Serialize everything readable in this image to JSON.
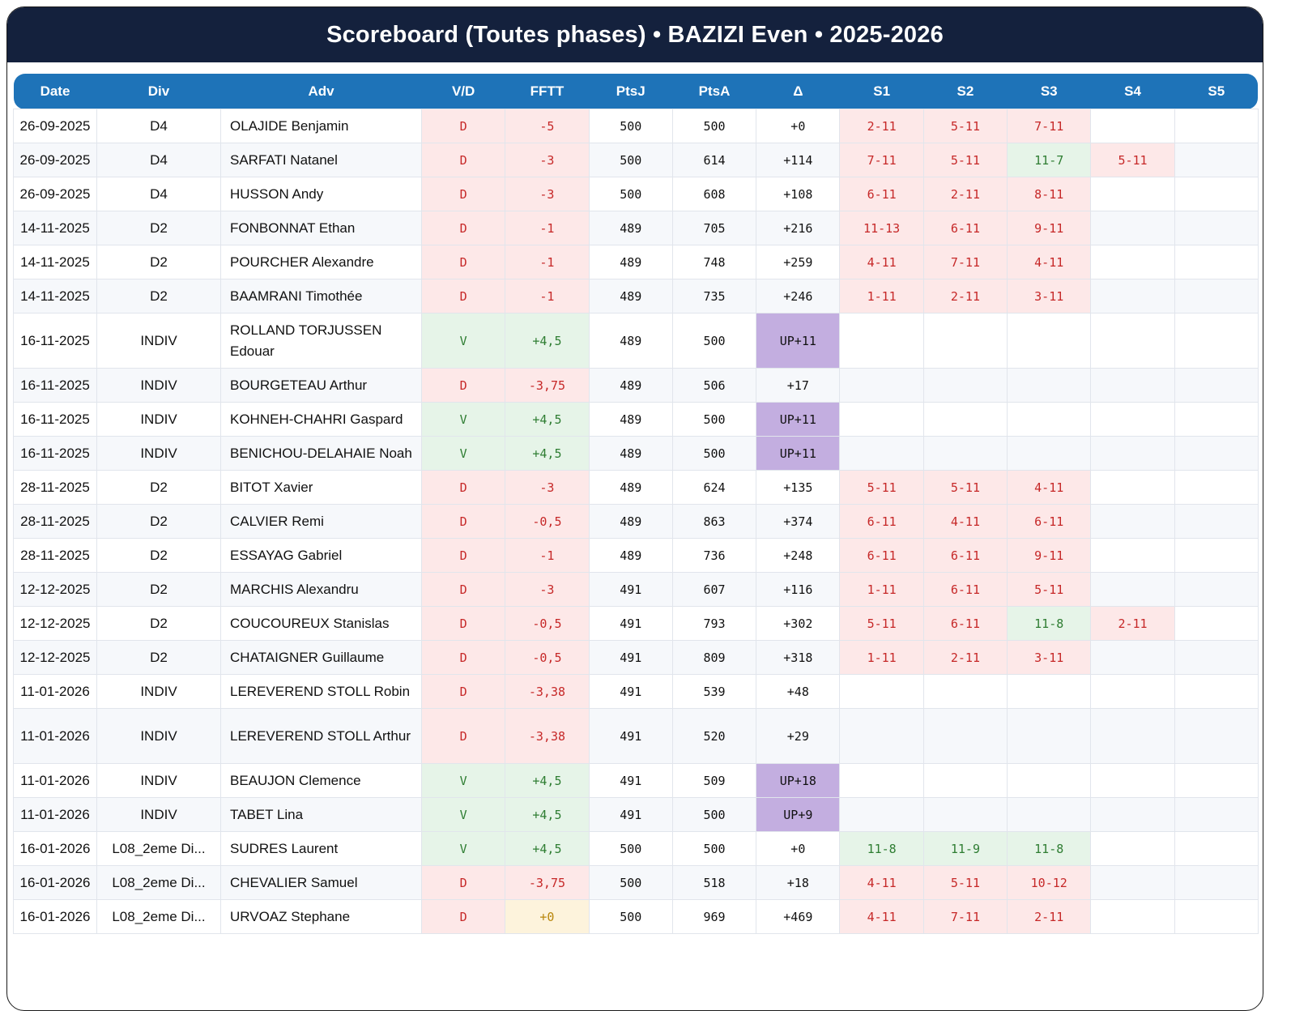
{
  "title": "Scoreboard (Toutes phases) • BAZIZI Even • 2025-2026",
  "columns": [
    "Date",
    "Div",
    "Adv",
    "V/D",
    "FFTT",
    "PtsJ",
    "PtsA",
    "Δ",
    "S1",
    "S2",
    "S3",
    "S4",
    "S5"
  ],
  "rows": [
    {
      "date": "26-09-2025",
      "div": "D4",
      "adv": "OLAJIDE Benjamin",
      "vd": "D",
      "fftt": "-5",
      "ptsj": "500",
      "ptsa": "500",
      "delta": "+0",
      "sets": [
        "2-11",
        "5-11",
        "7-11",
        "",
        ""
      ]
    },
    {
      "date": "26-09-2025",
      "div": "D4",
      "adv": "SARFATI Natanel",
      "vd": "D",
      "fftt": "-3",
      "ptsj": "500",
      "ptsa": "614",
      "delta": "+114",
      "sets": [
        "7-11",
        "5-11",
        "11-7",
        "5-11",
        ""
      ]
    },
    {
      "date": "26-09-2025",
      "div": "D4",
      "adv": "HUSSON Andy",
      "vd": "D",
      "fftt": "-3",
      "ptsj": "500",
      "ptsa": "608",
      "delta": "+108",
      "sets": [
        "6-11",
        "2-11",
        "8-11",
        "",
        ""
      ]
    },
    {
      "date": "14-11-2025",
      "div": "D2",
      "adv": "FONBONNAT Ethan",
      "vd": "D",
      "fftt": "-1",
      "ptsj": "489",
      "ptsa": "705",
      "delta": "+216",
      "sets": [
        "11-13",
        "6-11",
        "9-11",
        "",
        ""
      ]
    },
    {
      "date": "14-11-2025",
      "div": "D2",
      "adv": "POURCHER Alexandre",
      "vd": "D",
      "fftt": "-1",
      "ptsj": "489",
      "ptsa": "748",
      "delta": "+259",
      "sets": [
        "4-11",
        "7-11",
        "4-11",
        "",
        ""
      ]
    },
    {
      "date": "14-11-2025",
      "div": "D2",
      "adv": "BAAMRANI Timothée",
      "vd": "D",
      "fftt": "-1",
      "ptsj": "489",
      "ptsa": "735",
      "delta": "+246",
      "sets": [
        "1-11",
        "2-11",
        "3-11",
        "",
        ""
      ]
    },
    {
      "date": "16-11-2025",
      "div": "INDIV",
      "adv": "ROLLAND TORJUSSEN Edouar",
      "vd": "V",
      "fftt": "+4,5",
      "ptsj": "489",
      "ptsa": "500",
      "delta": "UP+11",
      "sets": [
        "",
        "",
        "",
        "",
        ""
      ]
    },
    {
      "date": "16-11-2025",
      "div": "INDIV",
      "adv": "BOURGETEAU Arthur",
      "vd": "D",
      "fftt": "-3,75",
      "ptsj": "489",
      "ptsa": "506",
      "delta": "+17",
      "sets": [
        "",
        "",
        "",
        "",
        ""
      ]
    },
    {
      "date": "16-11-2025",
      "div": "INDIV",
      "adv": "KOHNEH-CHAHRI Gaspard",
      "vd": "V",
      "fftt": "+4,5",
      "ptsj": "489",
      "ptsa": "500",
      "delta": "UP+11",
      "sets": [
        "",
        "",
        "",
        "",
        ""
      ]
    },
    {
      "date": "16-11-2025",
      "div": "INDIV",
      "adv": "BENICHOU-DELAHAIE Noah",
      "vd": "V",
      "fftt": "+4,5",
      "ptsj": "489",
      "ptsa": "500",
      "delta": "UP+11",
      "sets": [
        "",
        "",
        "",
        "",
        ""
      ]
    },
    {
      "date": "28-11-2025",
      "div": "D2",
      "adv": "BITOT Xavier",
      "vd": "D",
      "fftt": "-3",
      "ptsj": "489",
      "ptsa": "624",
      "delta": "+135",
      "sets": [
        "5-11",
        "5-11",
        "4-11",
        "",
        ""
      ]
    },
    {
      "date": "28-11-2025",
      "div": "D2",
      "adv": "CALVIER Remi",
      "vd": "D",
      "fftt": "-0,5",
      "ptsj": "489",
      "ptsa": "863",
      "delta": "+374",
      "sets": [
        "6-11",
        "4-11",
        "6-11",
        "",
        ""
      ]
    },
    {
      "date": "28-11-2025",
      "div": "D2",
      "adv": "ESSAYAG Gabriel",
      "vd": "D",
      "fftt": "-1",
      "ptsj": "489",
      "ptsa": "736",
      "delta": "+248",
      "sets": [
        "6-11",
        "6-11",
        "9-11",
        "",
        ""
      ]
    },
    {
      "date": "12-12-2025",
      "div": "D2",
      "adv": "MARCHIS Alexandru",
      "vd": "D",
      "fftt": "-3",
      "ptsj": "491",
      "ptsa": "607",
      "delta": "+116",
      "sets": [
        "1-11",
        "6-11",
        "5-11",
        "",
        ""
      ]
    },
    {
      "date": "12-12-2025",
      "div": "D2",
      "adv": "COUCOUREUX Stanislas",
      "vd": "D",
      "fftt": "-0,5",
      "ptsj": "491",
      "ptsa": "793",
      "delta": "+302",
      "sets": [
        "5-11",
        "6-11",
        "11-8",
        "2-11",
        ""
      ]
    },
    {
      "date": "12-12-2025",
      "div": "D2",
      "adv": "CHATAIGNER Guillaume",
      "vd": "D",
      "fftt": "-0,5",
      "ptsj": "491",
      "ptsa": "809",
      "delta": "+318",
      "sets": [
        "1-11",
        "2-11",
        "3-11",
        "",
        ""
      ]
    },
    {
      "date": "11-01-2026",
      "div": "INDIV",
      "adv": "LEREVEREND STOLL Robin",
      "vd": "D",
      "fftt": "-3,38",
      "ptsj": "491",
      "ptsa": "539",
      "delta": "+48",
      "sets": [
        "",
        "",
        "",
        "",
        ""
      ]
    },
    {
      "date": "11-01-2026",
      "div": "INDIV",
      "adv": "LEREVEREND STOLL Arthur",
      "vd": "D",
      "fftt": "-3,38",
      "ptsj": "491",
      "ptsa": "520",
      "delta": "+29",
      "sets": [
        "",
        "",
        "",
        "",
        ""
      ]
    },
    {
      "date": "11-01-2026",
      "div": "INDIV",
      "adv": "BEAUJON Clemence",
      "vd": "V",
      "fftt": "+4,5",
      "ptsj": "491",
      "ptsa": "509",
      "delta": "UP+18",
      "sets": [
        "",
        "",
        "",
        "",
        ""
      ]
    },
    {
      "date": "11-01-2026",
      "div": "INDIV",
      "adv": "TABET Lina",
      "vd": "V",
      "fftt": "+4,5",
      "ptsj": "491",
      "ptsa": "500",
      "delta": "UP+9",
      "sets": [
        "",
        "",
        "",
        "",
        ""
      ]
    },
    {
      "date": "16-01-2026",
      "div": "L08_2eme Di...",
      "adv": "SUDRES Laurent",
      "vd": "V",
      "fftt": "+4,5",
      "ptsj": "500",
      "ptsa": "500",
      "delta": "+0",
      "sets": [
        "11-8",
        "11-9",
        "11-8",
        "",
        ""
      ]
    },
    {
      "date": "16-01-2026",
      "div": "L08_2eme Di...",
      "adv": "CHEVALIER Samuel",
      "vd": "D",
      "fftt": "-3,75",
      "ptsj": "500",
      "ptsa": "518",
      "delta": "+18",
      "sets": [
        "4-11",
        "5-11",
        "10-12",
        "",
        ""
      ]
    },
    {
      "date": "16-01-2026",
      "div": "L08_2eme Di...",
      "adv": "URVOAZ Stephane",
      "vd": "D",
      "fftt": "+0",
      "ptsj": "500",
      "ptsa": "969",
      "delta": "+469",
      "sets": [
        "4-11",
        "7-11",
        "2-11",
        "",
        ""
      ]
    }
  ]
}
